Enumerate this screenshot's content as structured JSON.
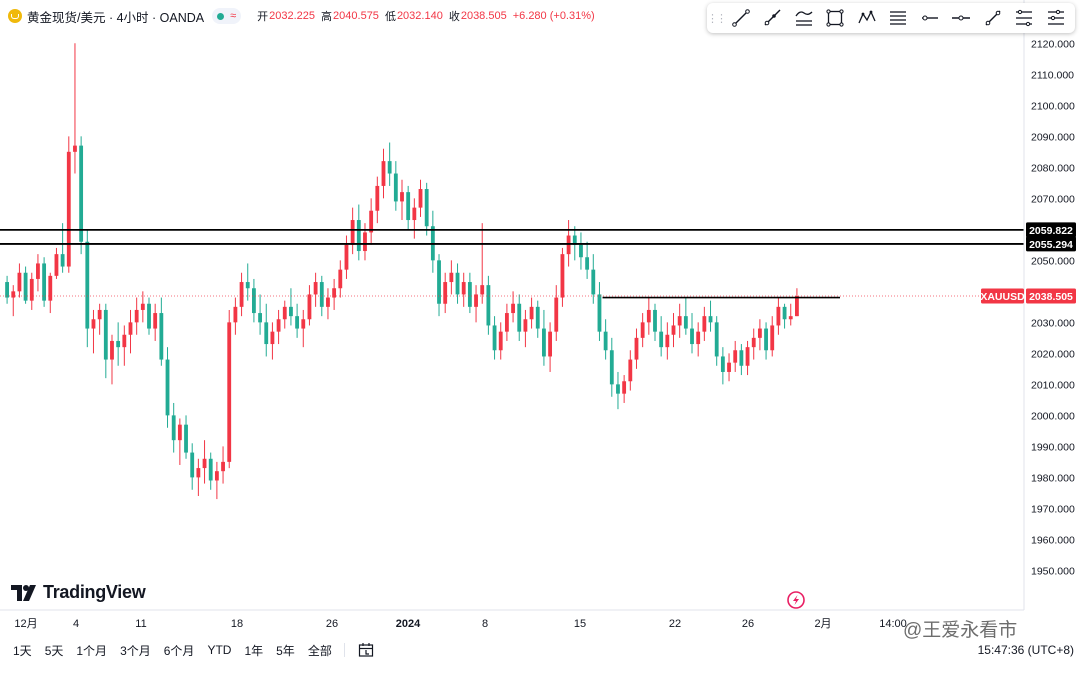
{
  "legend": {
    "symbol": "黄金现货/美元 · 4小时 · OANDA",
    "open_label": "开",
    "open": "2032.225",
    "high_label": "高",
    "high": "2040.575",
    "low_label": "低",
    "low": "2032.140",
    "close_label": "收",
    "close": "2038.505",
    "change": "+6.280 (+0.31%)"
  },
  "toolbar": {
    "tools": [
      "trend-line-icon",
      "ray-icon",
      "parallel-channel-icon",
      "rectangle-icon",
      "xabcd-pattern-icon",
      "horizontal-lines-icon",
      "horizontal-ray-icon",
      "horizontal-line-icon",
      "info-line-icon",
      "fib-retracement-icon",
      "fib-levels-icon"
    ]
  },
  "chart_data": {
    "type": "candlestick",
    "instrument": "XAUUSD",
    "interval": "4小时",
    "y_ticks": [
      "2120.000",
      "2110.000",
      "2100.000",
      "2090.000",
      "2080.000",
      "2070.000",
      "2060.000",
      "2050.000",
      "2040.000",
      "2030.000",
      "2020.000",
      "2010.000",
      "2000.000",
      "1990.000",
      "1980.000",
      "1970.000",
      "1960.000",
      "1950.000"
    ],
    "x_ticks": [
      "12月",
      "4",
      "11",
      "18",
      "26",
      "2024",
      "8",
      "15",
      "22",
      "26",
      "2月",
      "14:00"
    ],
    "ylim": [
      1944,
      2123
    ],
    "price_labels": {
      "last": {
        "name": "XAUUSD",
        "value": "2038.505",
        "num": 2038.505
      },
      "level_1": {
        "value": "2059.822",
        "num": 2059.822
      },
      "level_2": {
        "value": "2055.294",
        "num": 2055.294
      }
    },
    "segment_level": 2038.0,
    "colors": {
      "up": "#f23645",
      "down": "#22ab94",
      "axis_text": "#131722",
      "border": "#e0e3eb"
    },
    "candles": [
      [
        2043,
        2045,
        2036,
        2038
      ],
      [
        2038,
        2042,
        2032,
        2040
      ],
      [
        2040,
        2049,
        2038,
        2046
      ],
      [
        2046,
        2048,
        2036,
        2037
      ],
      [
        2037,
        2046,
        2034,
        2044
      ],
      [
        2044,
        2052,
        2040,
        2049
      ],
      [
        2049,
        2051,
        2035,
        2037
      ],
      [
        2037,
        2046,
        2033,
        2045
      ],
      [
        2045,
        2054,
        2044,
        2052
      ],
      [
        2052,
        2062,
        2046,
        2048
      ],
      [
        2048,
        2090,
        2046,
        2085
      ],
      [
        2085,
        2120,
        2078,
        2087
      ],
      [
        2087,
        2090,
        2052,
        2056
      ],
      [
        2056,
        2060,
        2022,
        2028
      ],
      [
        2028,
        2034,
        2020,
        2031
      ],
      [
        2031,
        2036,
        2026,
        2034
      ],
      [
        2034,
        2036,
        2012,
        2018
      ],
      [
        2018,
        2026,
        2010,
        2024
      ],
      [
        2024,
        2030,
        2016,
        2022
      ],
      [
        2022,
        2029,
        2016,
        2026
      ],
      [
        2026,
        2034,
        2020,
        2030
      ],
      [
        2030,
        2038,
        2026,
        2034
      ],
      [
        2034,
        2040,
        2030,
        2036
      ],
      [
        2036,
        2038,
        2026,
        2028
      ],
      [
        2028,
        2036,
        2024,
        2033
      ],
      [
        2033,
        2038,
        2016,
        2018
      ],
      [
        2018,
        2022,
        1996,
        2000
      ],
      [
        2000,
        2004,
        1988,
        1992
      ],
      [
        1992,
        1999,
        1984,
        1997
      ],
      [
        1997,
        2000,
        1986,
        1988
      ],
      [
        1988,
        1991,
        1976,
        1980
      ],
      [
        1980,
        1986,
        1974,
        1983
      ],
      [
        1983,
        1992,
        1978,
        1986
      ],
      [
        1986,
        1988,
        1976,
        1979
      ],
      [
        1979,
        1985,
        1973,
        1982
      ],
      [
        1982,
        1990,
        1978,
        1985
      ],
      [
        1985,
        2034,
        1983,
        2030
      ],
      [
        2030,
        2038,
        2026,
        2035
      ],
      [
        2035,
        2046,
        2032,
        2043
      ],
      [
        2043,
        2049,
        2037,
        2041
      ],
      [
        2041,
        2044,
        2030,
        2033
      ],
      [
        2033,
        2039,
        2026,
        2030
      ],
      [
        2030,
        2036,
        2019,
        2023
      ],
      [
        2023,
        2030,
        2018,
        2027
      ],
      [
        2027,
        2034,
        2023,
        2031
      ],
      [
        2031,
        2037,
        2028,
        2035
      ],
      [
        2035,
        2041,
        2029,
        2032
      ],
      [
        2032,
        2036,
        2025,
        2028
      ],
      [
        2028,
        2034,
        2022,
        2031
      ],
      [
        2031,
        2042,
        2029,
        2039
      ],
      [
        2039,
        2046,
        2035,
        2043
      ],
      [
        2043,
        2045,
        2032,
        2035
      ],
      [
        2035,
        2041,
        2031,
        2038
      ],
      [
        2038,
        2044,
        2034,
        2041
      ],
      [
        2041,
        2050,
        2038,
        2047
      ],
      [
        2047,
        2058,
        2044,
        2055
      ],
      [
        2055,
        2067,
        2052,
        2063
      ],
      [
        2063,
        2068,
        2050,
        2053
      ],
      [
        2053,
        2062,
        2050,
        2059
      ],
      [
        2059,
        2070,
        2055,
        2066
      ],
      [
        2066,
        2077,
        2062,
        2074
      ],
      [
        2074,
        2086,
        2070,
        2082
      ],
      [
        2082,
        2088,
        2074,
        2078
      ],
      [
        2078,
        2082,
        2066,
        2069
      ],
      [
        2069,
        2076,
        2063,
        2072
      ],
      [
        2072,
        2074,
        2060,
        2063
      ],
      [
        2063,
        2070,
        2057,
        2067
      ],
      [
        2067,
        2076,
        2064,
        2073
      ],
      [
        2073,
        2075,
        2058,
        2061
      ],
      [
        2061,
        2066,
        2046,
        2050
      ],
      [
        2050,
        2052,
        2032,
        2036
      ],
      [
        2036,
        2046,
        2033,
        2043
      ],
      [
        2043,
        2050,
        2039,
        2046
      ],
      [
        2046,
        2049,
        2036,
        2039
      ],
      [
        2039,
        2046,
        2035,
        2043
      ],
      [
        2043,
        2046,
        2033,
        2035
      ],
      [
        2035,
        2042,
        2030,
        2039
      ],
      [
        2039,
        2062,
        2036,
        2042
      ],
      [
        2042,
        2045,
        2026,
        2029
      ],
      [
        2029,
        2032,
        2018,
        2021
      ],
      [
        2021,
        2030,
        2018,
        2027
      ],
      [
        2027,
        2036,
        2024,
        2033
      ],
      [
        2033,
        2040,
        2030,
        2036
      ],
      [
        2036,
        2039,
        2024,
        2027
      ],
      [
        2027,
        2034,
        2022,
        2031
      ],
      [
        2031,
        2038,
        2028,
        2035
      ],
      [
        2035,
        2037,
        2025,
        2028
      ],
      [
        2028,
        2034,
        2016,
        2019
      ],
      [
        2019,
        2030,
        2014,
        2027
      ],
      [
        2027,
        2042,
        2024,
        2038
      ],
      [
        2038,
        2054,
        2035,
        2052
      ],
      [
        2052,
        2063,
        2048,
        2058
      ],
      [
        2058,
        2061,
        2050,
        2055
      ],
      [
        2055,
        2059,
        2047,
        2051
      ],
      [
        2051,
        2056,
        2044,
        2047
      ],
      [
        2047,
        2052,
        2036,
        2039
      ],
      [
        2039,
        2043,
        2024,
        2027
      ],
      [
        2027,
        2031,
        2018,
        2021
      ],
      [
        2021,
        2025,
        2006,
        2010
      ],
      [
        2010,
        2014,
        2002,
        2007
      ],
      [
        2007,
        2013,
        2004,
        2011
      ],
      [
        2011,
        2021,
        2008,
        2018
      ],
      [
        2018,
        2028,
        2015,
        2025
      ],
      [
        2025,
        2033,
        2022,
        2030
      ],
      [
        2030,
        2038,
        2026,
        2034
      ],
      [
        2034,
        2036,
        2024,
        2027
      ],
      [
        2027,
        2032,
        2019,
        2022
      ],
      [
        2022,
        2030,
        2018,
        2026
      ],
      [
        2026,
        2033,
        2022,
        2029
      ],
      [
        2029,
        2036,
        2025,
        2032
      ],
      [
        2032,
        2038,
        2026,
        2028
      ],
      [
        2028,
        2033,
        2020,
        2023
      ],
      [
        2023,
        2030,
        2019,
        2027
      ],
      [
        2027,
        2035,
        2024,
        2032
      ],
      [
        2032,
        2037,
        2027,
        2030
      ],
      [
        2030,
        2032,
        2016,
        2019
      ],
      [
        2019,
        2022,
        2010,
        2014
      ],
      [
        2014,
        2020,
        2011,
        2017
      ],
      [
        2017,
        2024,
        2014,
        2021
      ],
      [
        2021,
        2023,
        2013,
        2016
      ],
      [
        2016,
        2024,
        2013,
        2022
      ],
      [
        2022,
        2028,
        2018,
        2025
      ],
      [
        2025,
        2031,
        2021,
        2028
      ],
      [
        2028,
        2030,
        2018,
        2021
      ],
      [
        2021,
        2032,
        2019,
        2029
      ],
      [
        2029,
        2038,
        2026,
        2035
      ],
      [
        2035,
        2036,
        2028,
        2031
      ],
      [
        2031,
        2036,
        2029,
        2032
      ],
      [
        2032,
        2041,
        2032,
        2038.5
      ]
    ]
  },
  "range_bar": {
    "buttons": [
      "1天",
      "5天",
      "1个月",
      "3个月",
      "6个月",
      "YTD",
      "1年",
      "5年",
      "全部"
    ],
    "clock": "15:47:36 (UTC+8)"
  },
  "branding": {
    "tv_logo_text": "TradingView",
    "watermark": "@王爱永看市"
  }
}
